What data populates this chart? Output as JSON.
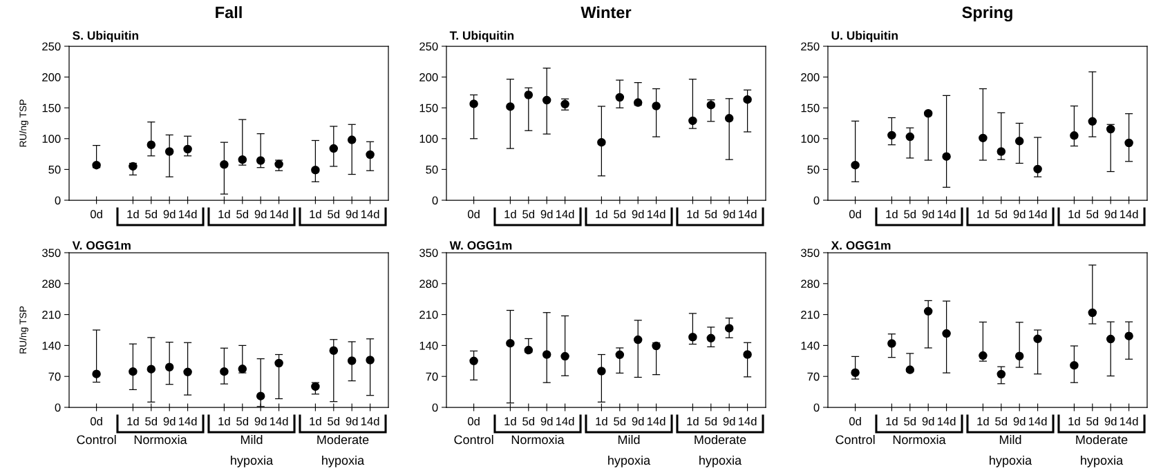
{
  "chart_data": [
    {
      "type": "scatter",
      "title": "Fall",
      "subtitle": "S. Ubiquitin",
      "ylabel": "RU/ng TSP",
      "categories": [
        "0d",
        null,
        "1d",
        "5d",
        "9d",
        "14d",
        null,
        "1d",
        "5d",
        "9d",
        "14d",
        null,
        "1d",
        "5d",
        "9d",
        "14d"
      ],
      "color": "#000000",
      "marker": "circle",
      "ylim": [
        0,
        250
      ],
      "yticks": [
        0,
        50,
        100,
        150,
        200,
        250
      ],
      "values": [
        57,
        null,
        55,
        90,
        79,
        83,
        null,
        58,
        66,
        64.5,
        58.5,
        null,
        49,
        84,
        98,
        74
      ],
      "errors": [
        [
          53,
          89
        ],
        null,
        [
          41,
          60
        ],
        [
          72,
          127
        ],
        [
          38,
          106
        ],
        [
          72,
          104
        ],
        null,
        [
          10,
          94
        ],
        [
          57,
          131
        ],
        [
          53,
          108
        ],
        [
          48,
          65
        ],
        null,
        [
          30,
          97
        ],
        [
          55,
          120
        ],
        [
          42,
          123
        ],
        [
          48,
          95
        ]
      ]
    },
    {
      "type": "scatter",
      "title": "Winter",
      "subtitle": "T. Ubiquitin",
      "categories": [
        "0d",
        null,
        "1d",
        "5d",
        "9d",
        "14d",
        null,
        "1d",
        "5d",
        "9d",
        "14d",
        null,
        "1d",
        "5d",
        "9d",
        "14d"
      ],
      "color": "#000000",
      "marker": "circle",
      "ylim": [
        0,
        250
      ],
      "yticks": [
        0,
        50,
        100,
        150,
        200,
        250
      ],
      "values": [
        156.5,
        null,
        152,
        171,
        162.5,
        156,
        null,
        94,
        167,
        158.5,
        153,
        null,
        129,
        154.5,
        133,
        163.5
      ],
      "errors": [
        [
          100,
          171
        ],
        null,
        [
          84,
          196.5
        ],
        [
          113,
          182.5
        ],
        [
          107.5,
          214.5
        ],
        [
          146.5,
          164.5
        ],
        null,
        [
          39.5,
          152.5
        ],
        [
          150,
          195
        ],
        [
          154.5,
          191
        ],
        [
          103,
          181
        ],
        null,
        [
          116.5,
          196.5
        ],
        [
          128,
          163
        ],
        [
          66,
          165
        ],
        [
          111,
          179
        ]
      ]
    },
    {
      "type": "scatter",
      "title": "Spring",
      "subtitle": "U. Ubiquitin",
      "categories": [
        "0d",
        null,
        "1d",
        "5d",
        "9d",
        "14d",
        null,
        "1d",
        "5d",
        "9d",
        "14d",
        null,
        "1d",
        "5d",
        "9d",
        "14d"
      ],
      "color": "#000000",
      "marker": "circle",
      "ylim": [
        0,
        250
      ],
      "yticks": [
        0,
        50,
        100,
        150,
        200,
        250
      ],
      "values": [
        57,
        null,
        105.5,
        103,
        141,
        71,
        null,
        101,
        79,
        96,
        50.5,
        null,
        105,
        128,
        115.5,
        93
      ],
      "errors": [
        [
          30,
          128.5
        ],
        null,
        [
          90,
          134
        ],
        [
          68.5,
          117.5
        ],
        [
          65,
          143
        ],
        [
          21,
          170
        ],
        null,
        [
          65,
          181
        ],
        [
          66,
          142
        ],
        [
          60,
          125
        ],
        [
          38,
          102
        ],
        null,
        [
          88,
          153
        ],
        [
          103,
          208.5
        ],
        [
          46.5,
          123
        ],
        [
          63,
          140.5
        ]
      ]
    },
    {
      "type": "scatter",
      "title": "V. OGG1m",
      "ylabel": "RU/ng TSP",
      "categories": [
        "0d",
        null,
        "1d",
        "5d",
        "9d",
        "14d",
        null,
        "1d",
        "5d",
        "9d",
        "14d",
        null,
        "1d",
        "5d",
        "9d",
        "14d"
      ],
      "color": "#000000",
      "marker": "circle",
      "ylim": [
        0,
        350
      ],
      "yticks": [
        0,
        70,
        140,
        210,
        280,
        350
      ],
      "values": [
        75.5,
        null,
        81,
        86.5,
        91,
        80,
        null,
        81,
        87,
        25.5,
        100,
        null,
        47,
        128.5,
        105.5,
        107
      ],
      "errors": [
        [
          57,
          175
        ],
        null,
        [
          40,
          143.5
        ],
        [
          12,
          158
        ],
        [
          52,
          147.5
        ],
        [
          28,
          146.5
        ],
        null,
        [
          53,
          134
        ],
        [
          78,
          140
        ],
        [
          2,
          110
        ],
        [
          19.5,
          119.5
        ],
        null,
        [
          30,
          56
        ],
        [
          13,
          153.5
        ],
        [
          60,
          148.5
        ],
        [
          27,
          155
        ]
      ],
      "annotations": [
        "Control",
        "Normoxia",
        "Mild\nhypoxia",
        "Moderate\nhypoxia"
      ]
    },
    {
      "type": "scatter",
      "title": "W. OGG1m",
      "categories": [
        "0d",
        null,
        "1d",
        "5d",
        "9d",
        "14d",
        null,
        "1d",
        "5d",
        "9d",
        "14d",
        null,
        "1d",
        "5d",
        "9d",
        "14d"
      ],
      "color": "#000000",
      "marker": "circle",
      "ylim": [
        0,
        350
      ],
      "yticks": [
        0,
        70,
        140,
        210,
        280,
        350
      ],
      "values": [
        105,
        null,
        145,
        129.5,
        119.5,
        115.5,
        null,
        82,
        119,
        153,
        139,
        null,
        159,
        156.5,
        179,
        119.5
      ],
      "errors": [
        [
          62,
          127.5
        ],
        null,
        [
          10,
          219.5
        ],
        [
          125,
          155.5
        ],
        [
          56,
          214.5
        ],
        [
          71.5,
          207
        ],
        null,
        [
          12,
          119.5
        ],
        [
          77.5,
          134.5
        ],
        [
          68,
          197
        ],
        [
          74,
          146
        ],
        null,
        [
          143,
          212.5
        ],
        [
          137,
          181.5
        ],
        [
          157.5,
          202
        ],
        [
          69,
          146.5
        ]
      ],
      "annotations": [
        "Control",
        "Normoxia",
        "Mild\nhypoxia",
        "Moderate\nhypoxia"
      ]
    },
    {
      "type": "scatter",
      "title": "X. OGG1m",
      "categories": [
        "0d",
        null,
        "1d",
        "5d",
        "9d",
        "14d",
        null,
        "1d",
        "5d",
        "9d",
        "14d",
        null,
        "1d",
        "5d",
        "9d",
        "14d"
      ],
      "color": "#000000",
      "marker": "circle",
      "ylim": [
        0,
        350
      ],
      "yticks": [
        0,
        70,
        140,
        210,
        280,
        350
      ],
      "values": [
        78.5,
        null,
        144.5,
        85,
        217.5,
        167,
        null,
        117,
        75,
        116,
        155,
        null,
        95,
        214,
        154.5,
        161.5
      ],
      "errors": [
        [
          64,
          115
        ],
        null,
        [
          113,
          166
        ],
        [
          81,
          122
        ],
        [
          134.5,
          241.5
        ],
        [
          78,
          240.5
        ],
        null,
        [
          104.5,
          193
        ],
        [
          53.5,
          92
        ],
        [
          90.5,
          192.5
        ],
        [
          75.5,
          175
        ],
        null,
        [
          56,
          139
        ],
        [
          189,
          322
        ],
        [
          71,
          193.5
        ],
        [
          109,
          193.5
        ]
      ],
      "annotations": [
        "Control",
        "Normoxia",
        "Mild\nhypoxia",
        "Moderate\nhypoxia"
      ]
    }
  ]
}
